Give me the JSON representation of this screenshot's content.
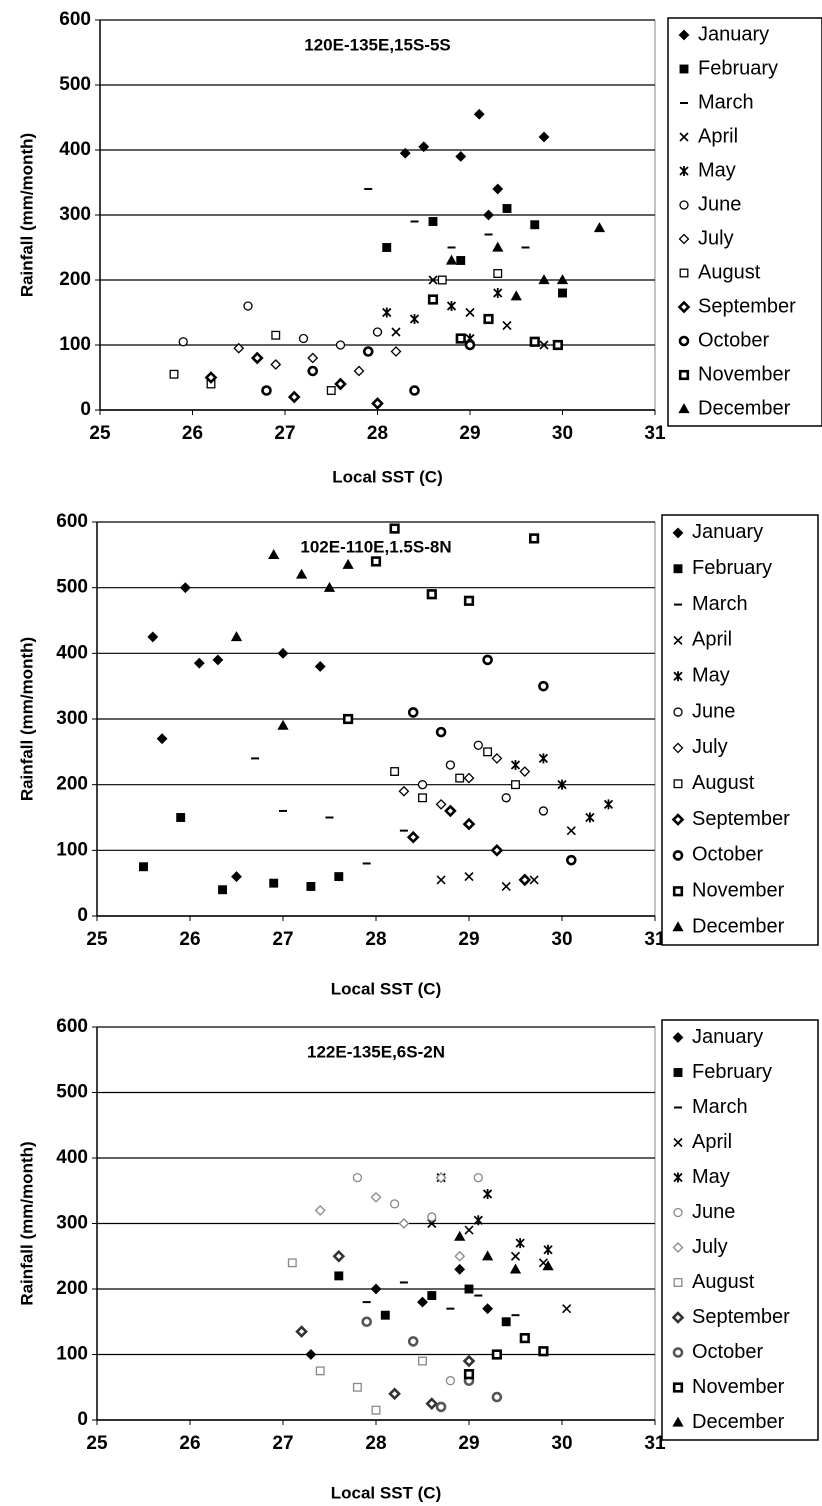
{
  "chart_data": [
    {
      "type": "scatter",
      "title": "120E-135E,15S-5S",
      "x_label": "Local SST (C)",
      "y_label": "Rainfall (mm/month)",
      "xlim": [
        25,
        31
      ],
      "ylim": [
        0,
        600
      ],
      "xticks": [
        25,
        26,
        27,
        28,
        29,
        30,
        31
      ],
      "yticks": [
        0,
        100,
        200,
        300,
        400,
        500,
        600
      ],
      "grid": true,
      "series": [
        {
          "name": "January",
          "marker": "diamond",
          "color": "#000",
          "x": [
            28.3,
            28.9,
            29.1,
            29.3,
            29.8,
            29.2,
            28.5
          ],
          "values": [
            395,
            390,
            455,
            340,
            420,
            300,
            405
          ]
        },
        {
          "name": "February",
          "marker": "square",
          "color": "#000",
          "x": [
            28.1,
            28.6,
            28.9,
            29.4,
            29.7,
            30.0
          ],
          "values": [
            250,
            290,
            230,
            310,
            285,
            180
          ]
        },
        {
          "name": "March",
          "marker": "dash",
          "color": "#000",
          "x": [
            27.9,
            28.4,
            28.8,
            29.2,
            29.6
          ],
          "values": [
            340,
            290,
            250,
            270,
            250
          ]
        },
        {
          "name": "April",
          "marker": "x",
          "color": "#000",
          "x": [
            28.2,
            28.6,
            29.0,
            29.4,
            29.8
          ],
          "values": [
            120,
            200,
            150,
            130,
            100
          ]
        },
        {
          "name": "May",
          "marker": "star",
          "color": "#000",
          "x": [
            28.1,
            28.4,
            28.8,
            29.0,
            29.3
          ],
          "values": [
            150,
            140,
            160,
            110,
            180
          ]
        },
        {
          "name": "June",
          "marker": "circle-open",
          "color": "#000",
          "x": [
            25.9,
            26.6,
            27.2,
            27.6,
            28.0
          ],
          "values": [
            105,
            160,
            110,
            100,
            120
          ]
        },
        {
          "name": "July",
          "marker": "diamond-open",
          "color": "#000",
          "x": [
            26.5,
            26.9,
            27.3,
            27.8,
            28.2
          ],
          "values": [
            95,
            70,
            80,
            60,
            90
          ]
        },
        {
          "name": "August",
          "marker": "square-open",
          "color": "#000",
          "x": [
            25.8,
            26.2,
            26.9,
            27.5,
            28.7,
            29.3
          ],
          "values": [
            55,
            40,
            115,
            30,
            200,
            210
          ]
        },
        {
          "name": "September",
          "marker": "diamond-bold",
          "color": "#000",
          "x": [
            26.2,
            26.7,
            27.1,
            27.6,
            28.0
          ],
          "values": [
            50,
            80,
            20,
            40,
            10
          ]
        },
        {
          "name": "October",
          "marker": "circle-bold",
          "color": "#000",
          "x": [
            26.8,
            27.3,
            27.9,
            28.4,
            29.0
          ],
          "values": [
            30,
            60,
            90,
            30,
            100
          ]
        },
        {
          "name": "November",
          "marker": "square-bold",
          "color": "#000",
          "x": [
            28.6,
            28.9,
            29.2,
            29.7,
            29.95
          ],
          "values": [
            170,
            110,
            140,
            105,
            100
          ]
        },
        {
          "name": "December",
          "marker": "triangle",
          "color": "#000",
          "x": [
            28.8,
            29.3,
            29.5,
            29.8,
            30.0,
            30.4
          ],
          "values": [
            230,
            250,
            175,
            200,
            200,
            280
          ]
        }
      ]
    },
    {
      "type": "scatter",
      "title": "102E-110E,1.5S-8N",
      "x_label": "Local SST (C)",
      "y_label": "Rainfall (mm/month)",
      "xlim": [
        25,
        31
      ],
      "ylim": [
        0,
        600
      ],
      "xticks": [
        25,
        26,
        27,
        28,
        29,
        30,
        31
      ],
      "yticks": [
        0,
        100,
        200,
        300,
        400,
        500,
        600
      ],
      "grid": true,
      "series": [
        {
          "name": "January",
          "marker": "diamond",
          "color": "#000",
          "x": [
            25.6,
            25.95,
            26.1,
            26.3,
            27.0,
            27.4,
            25.7,
            26.5
          ],
          "values": [
            425,
            500,
            385,
            390,
            400,
            380,
            270,
            60
          ]
        },
        {
          "name": "February",
          "marker": "square",
          "color": "#000",
          "x": [
            25.5,
            25.9,
            26.35,
            26.9,
            27.3,
            27.6
          ],
          "values": [
            75,
            150,
            40,
            50,
            45,
            60
          ]
        },
        {
          "name": "March",
          "marker": "dash",
          "color": "#000",
          "x": [
            26.7,
            27.0,
            27.5,
            27.9,
            28.3
          ],
          "values": [
            240,
            160,
            150,
            80,
            130
          ]
        },
        {
          "name": "April",
          "marker": "x",
          "color": "#000",
          "x": [
            28.7,
            29.0,
            29.4,
            29.7,
            30.1
          ],
          "values": [
            55,
            60,
            45,
            55,
            130
          ]
        },
        {
          "name": "May",
          "marker": "star",
          "color": "#000",
          "x": [
            29.5,
            29.8,
            30.0,
            30.3,
            30.5
          ],
          "values": [
            230,
            240,
            200,
            150,
            170
          ]
        },
        {
          "name": "June",
          "marker": "circle-open",
          "color": "#000",
          "x": [
            28.5,
            28.8,
            29.1,
            29.4,
            29.8
          ],
          "values": [
            200,
            230,
            260,
            180,
            160
          ]
        },
        {
          "name": "July",
          "marker": "diamond-open",
          "color": "#000",
          "x": [
            28.3,
            28.7,
            29.0,
            29.3,
            29.6
          ],
          "values": [
            190,
            170,
            210,
            240,
            220
          ]
        },
        {
          "name": "August",
          "marker": "square-open",
          "color": "#000",
          "x": [
            28.2,
            28.5,
            28.9,
            29.2,
            29.5
          ],
          "values": [
            220,
            180,
            210,
            250,
            200
          ]
        },
        {
          "name": "September",
          "marker": "diamond-bold",
          "color": "#000",
          "x": [
            28.4,
            28.8,
            29.0,
            29.3,
            29.6
          ],
          "values": [
            120,
            160,
            140,
            100,
            55
          ]
        },
        {
          "name": "October",
          "marker": "circle-bold",
          "color": "#000",
          "x": [
            28.4,
            28.7,
            29.2,
            29.8,
            30.1
          ],
          "values": [
            310,
            280,
            390,
            350,
            85
          ]
        },
        {
          "name": "November",
          "marker": "square-bold",
          "color": "#000",
          "x": [
            27.7,
            28.0,
            28.2,
            28.6,
            29.0,
            29.7
          ],
          "values": [
            300,
            540,
            590,
            490,
            480,
            575
          ]
        },
        {
          "name": "December",
          "marker": "triangle",
          "color": "#000",
          "x": [
            26.9,
            27.2,
            27.5,
            27.7,
            26.5,
            27.0
          ],
          "values": [
            550,
            520,
            500,
            535,
            425,
            290
          ]
        }
      ]
    },
    {
      "type": "scatter",
      "title": "122E-135E,6S-2N",
      "x_label": "Local SST (C)",
      "y_label": "Rainfall (mm/month)",
      "xlim": [
        25,
        31
      ],
      "ylim": [
        0,
        600
      ],
      "xticks": [
        25,
        26,
        27,
        28,
        29,
        30,
        31
      ],
      "yticks": [
        0,
        100,
        200,
        300,
        400,
        500,
        600
      ],
      "grid": true,
      "series": [
        {
          "name": "January",
          "marker": "diamond",
          "color": "#000",
          "x": [
            27.3,
            28.0,
            28.5,
            28.9,
            29.2
          ],
          "values": [
            100,
            200,
            180,
            230,
            170
          ]
        },
        {
          "name": "February",
          "marker": "square",
          "color": "#000",
          "x": [
            27.6,
            28.1,
            28.6,
            29.0,
            29.4
          ],
          "values": [
            220,
            160,
            190,
            200,
            150
          ]
        },
        {
          "name": "March",
          "marker": "dash",
          "color": "#000",
          "x": [
            27.9,
            28.3,
            28.8,
            29.1,
            29.5
          ],
          "values": [
            180,
            210,
            170,
            190,
            160
          ]
        },
        {
          "name": "April",
          "marker": "x",
          "color": "#000",
          "x": [
            28.6,
            29.0,
            29.5,
            29.8,
            30.05
          ],
          "values": [
            300,
            290,
            250,
            240,
            170
          ]
        },
        {
          "name": "May",
          "marker": "star",
          "color": "#000",
          "x": [
            28.7,
            29.1,
            29.2,
            29.55,
            29.85
          ],
          "values": [
            370,
            305,
            345,
            270,
            260
          ]
        },
        {
          "name": "June",
          "marker": "circle-open",
          "color": "#888",
          "x": [
            27.8,
            28.2,
            28.6,
            29.1,
            28.8
          ],
          "values": [
            370,
            330,
            310,
            370,
            60
          ]
        },
        {
          "name": "July",
          "marker": "diamond-open",
          "color": "#888",
          "x": [
            27.4,
            28.0,
            28.3,
            28.7,
            28.9
          ],
          "values": [
            320,
            340,
            300,
            370,
            250
          ]
        },
        {
          "name": "August",
          "marker": "square-open",
          "color": "#888",
          "x": [
            27.1,
            27.4,
            27.8,
            28.0,
            28.5
          ],
          "values": [
            240,
            75,
            50,
            15,
            90
          ]
        },
        {
          "name": "September",
          "marker": "diamond-bold",
          "color": "#333",
          "x": [
            27.2,
            27.6,
            28.2,
            28.6,
            29.0
          ],
          "values": [
            135,
            250,
            40,
            25,
            90
          ]
        },
        {
          "name": "October",
          "marker": "circle-bold",
          "color": "#555",
          "x": [
            27.9,
            28.4,
            28.7,
            29.0,
            29.3
          ],
          "values": [
            150,
            120,
            20,
            60,
            35
          ]
        },
        {
          "name": "November",
          "marker": "square-bold",
          "color": "#000",
          "x": [
            29.3,
            29.6,
            29.8,
            29.0
          ],
          "values": [
            100,
            125,
            105,
            70
          ]
        },
        {
          "name": "December",
          "marker": "triangle",
          "color": "#000",
          "x": [
            28.9,
            29.2,
            29.5,
            29.85
          ],
          "values": [
            280,
            250,
            230,
            235
          ]
        }
      ]
    }
  ]
}
